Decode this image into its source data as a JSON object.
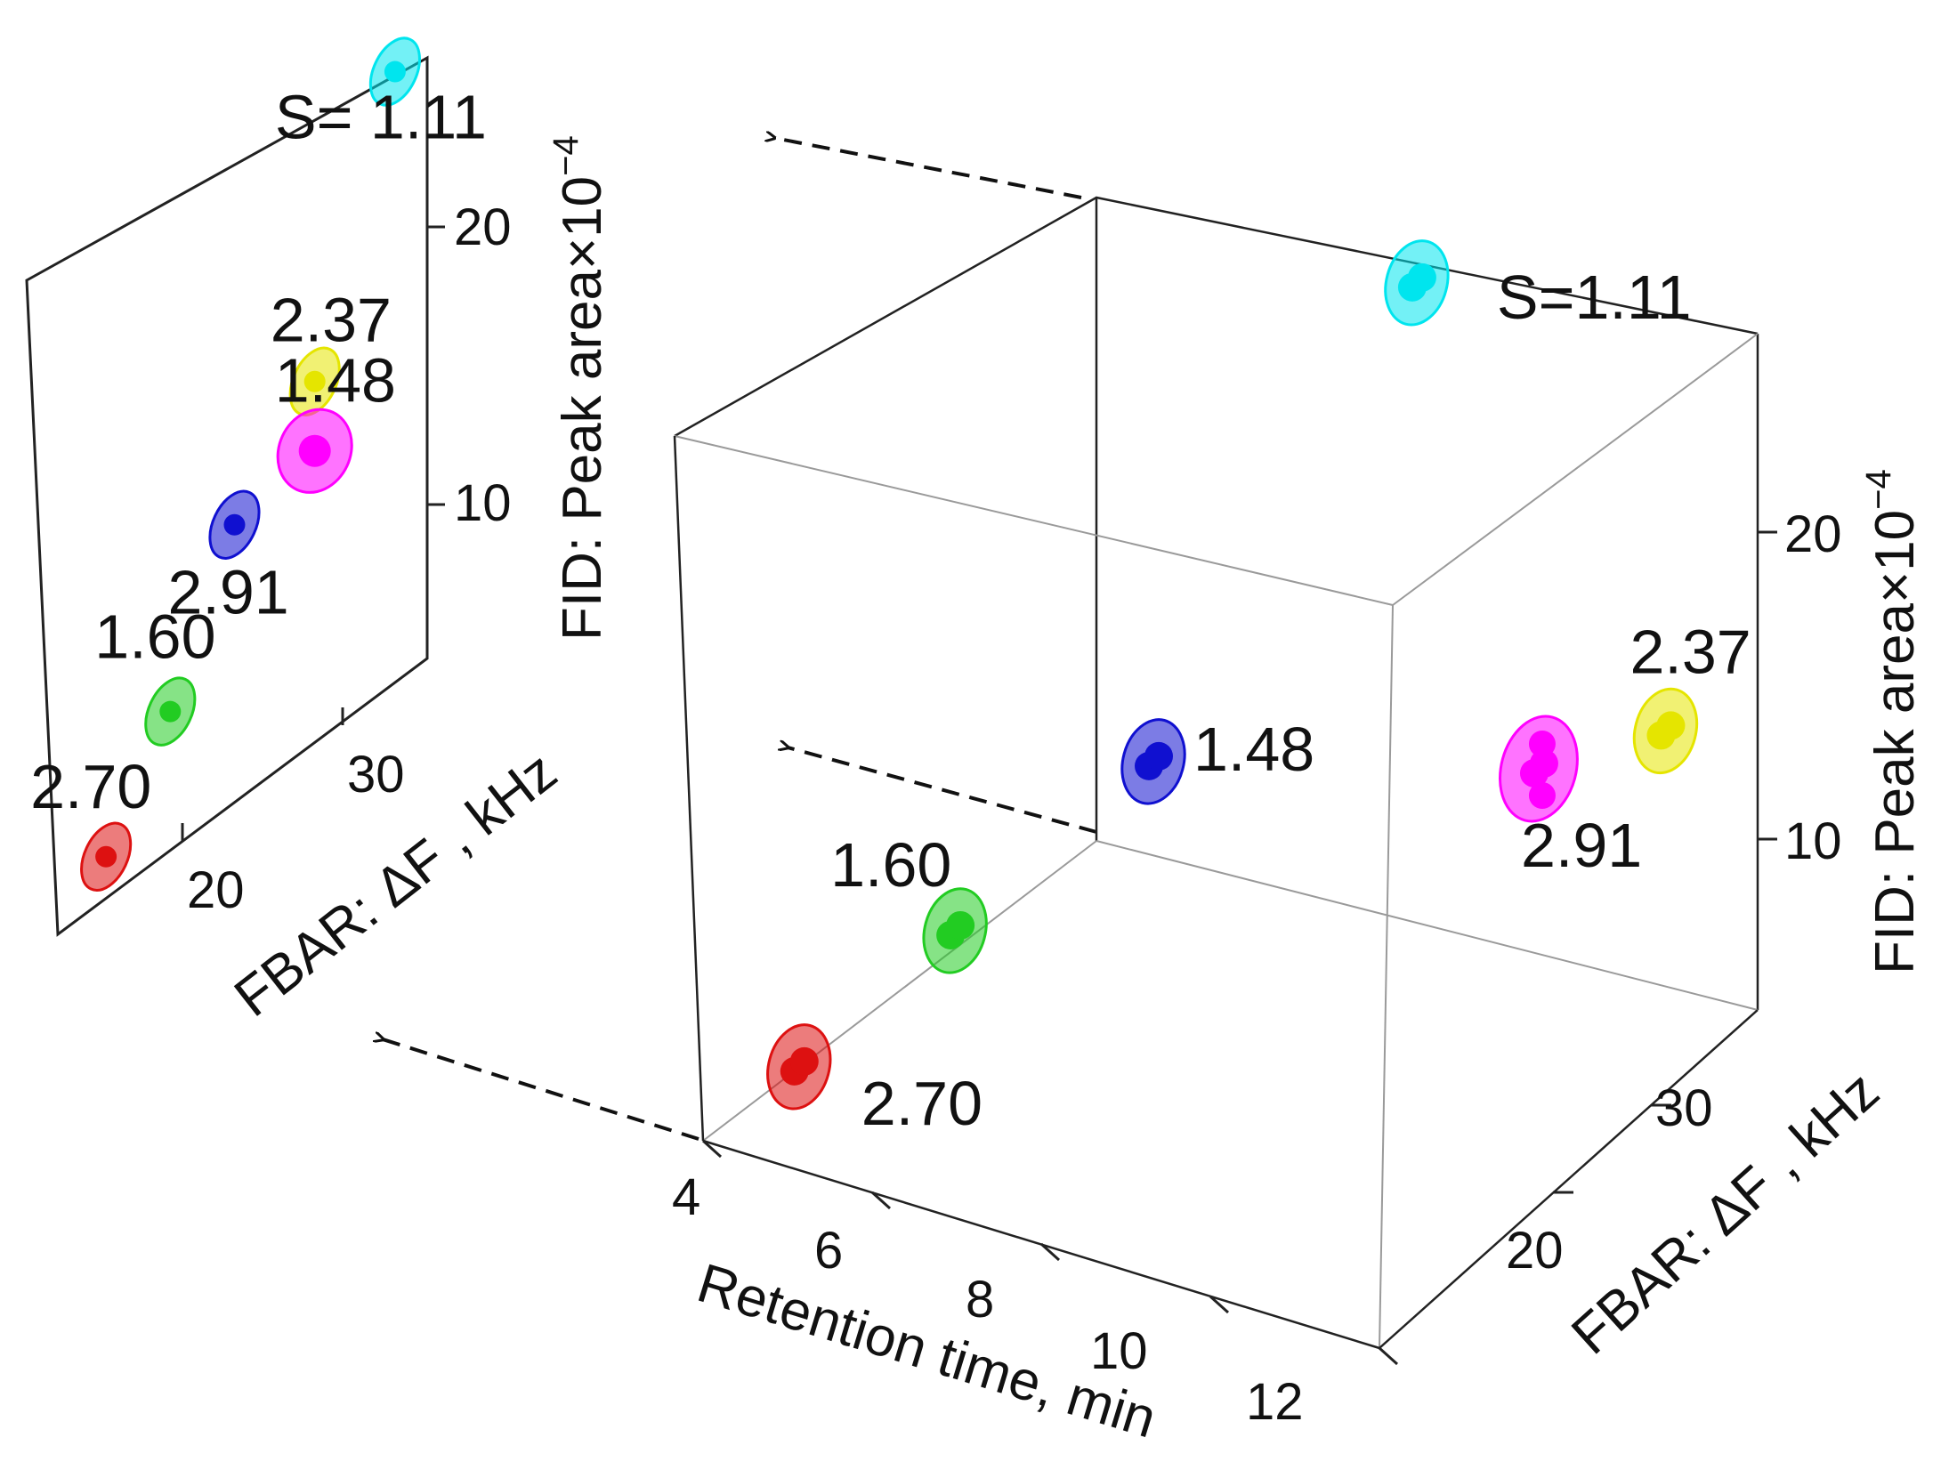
{
  "chart_data": {
    "type": "scatter",
    "axes": {
      "x_label": "Retention time, min",
      "x_ticks": [
        "4",
        "6",
        "8",
        "10",
        "12"
      ],
      "y_label": "FBAR: ΔF , kHz",
      "y_ticks": [
        "20",
        "30"
      ],
      "z_label": "FID: Peak area×10",
      "z_label_exponent": "−4",
      "z_ticks": [
        "10",
        "20"
      ]
    },
    "points": [
      {
        "label": "S=1.11",
        "retention_time": 8.0,
        "fbar_kHz": 36,
        "fid_area": 22,
        "color": "#00e5ee"
      },
      {
        "label": "2.37",
        "retention_time": 12.0,
        "fbar_kHz": 31,
        "fid_area": 13,
        "color": "#e5e500"
      },
      {
        "label": "2.91",
        "retention_time": 10.5,
        "fbar_kHz": 31,
        "fid_area": 10.5,
        "color": "#ff00ff"
      },
      {
        "label": "1.48",
        "retention_time": 7.0,
        "fbar_kHz": 26,
        "fid_area": 10,
        "color": "#1010d0"
      },
      {
        "label": "1.60",
        "retention_time": 5.5,
        "fbar_kHz": 22,
        "fid_area": 5,
        "color": "#22cc22"
      },
      {
        "label": "2.70",
        "retention_time": 4.5,
        "fbar_kHz": 18,
        "fid_area": 1.5,
        "color": "#dd1111"
      }
    ],
    "projection": {
      "y_label": "FBAR: ΔF , kHz",
      "y_ticks": [
        "20",
        "30"
      ],
      "z_label": "FID: Peak area×10",
      "z_label_exponent": "−4",
      "z_ticks": [
        "10",
        "20"
      ],
      "labels": [
        "S= 1.11",
        "2.37",
        "1.48",
        "2.91",
        "1.60",
        "2.70"
      ]
    }
  }
}
